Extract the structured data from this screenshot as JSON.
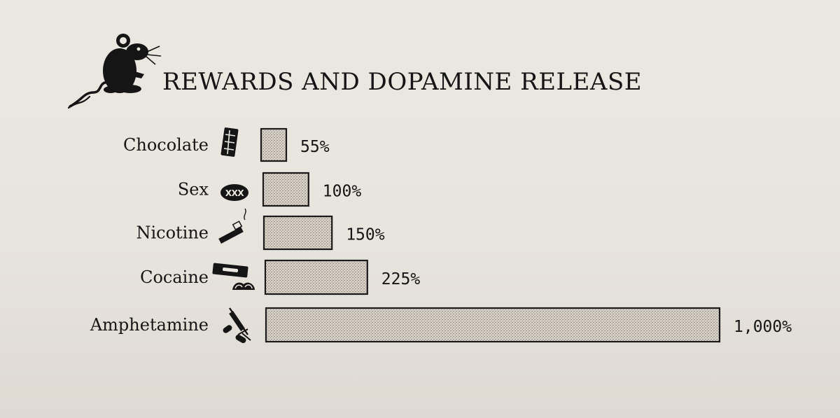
{
  "chart_data": {
    "type": "bar",
    "orientation": "horizontal",
    "title": "REWARDS AND DOPAMINE RELEASE",
    "categories": [
      "Chocolate",
      "Sex",
      "Nicotine",
      "Cocaine",
      "Amphetamine"
    ],
    "values": [
      55,
      100,
      150,
      225,
      1000
    ],
    "value_labels": [
      "55%",
      "100%",
      "150%",
      "225%",
      "1,000%"
    ],
    "icons": [
      "chocolate-bar-icon",
      "xxx-icon",
      "cigarette-icon",
      "razor-blade-powder-icon",
      "syringe-pills-icon"
    ],
    "title_icon": "rat-icon",
    "grid": false,
    "legend": "none",
    "colors": {
      "bar_fill": "#d2cbc2",
      "bar_stroke": "#1a1a1a",
      "ink": "#151515"
    }
  }
}
